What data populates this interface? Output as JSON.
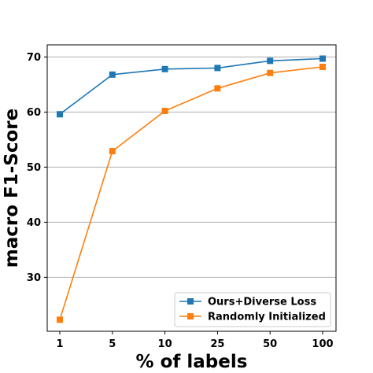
{
  "chart_data": {
    "type": "line",
    "categories": [
      "1",
      "5",
      "10",
      "25",
      "50",
      "100"
    ],
    "series": [
      {
        "name": "Ours+Diverse Loss",
        "color": "#1f77b4",
        "marker": "square",
        "values": [
          59.6,
          66.8,
          67.8,
          68.0,
          69.3,
          69.7
        ]
      },
      {
        "name": "Randomly Initialized",
        "color": "#ff7f0e",
        "marker": "square",
        "values": [
          22.3,
          52.9,
          60.2,
          64.3,
          67.1,
          68.2
        ]
      }
    ],
    "xlabel": "% of labels",
    "ylabel": "macro F1-Score",
    "ylim": [
      20.2,
      72.2
    ],
    "yticks": [
      30,
      40,
      50,
      60,
      70
    ],
    "grid": "horizontal",
    "legend_position": "bottom-right"
  }
}
